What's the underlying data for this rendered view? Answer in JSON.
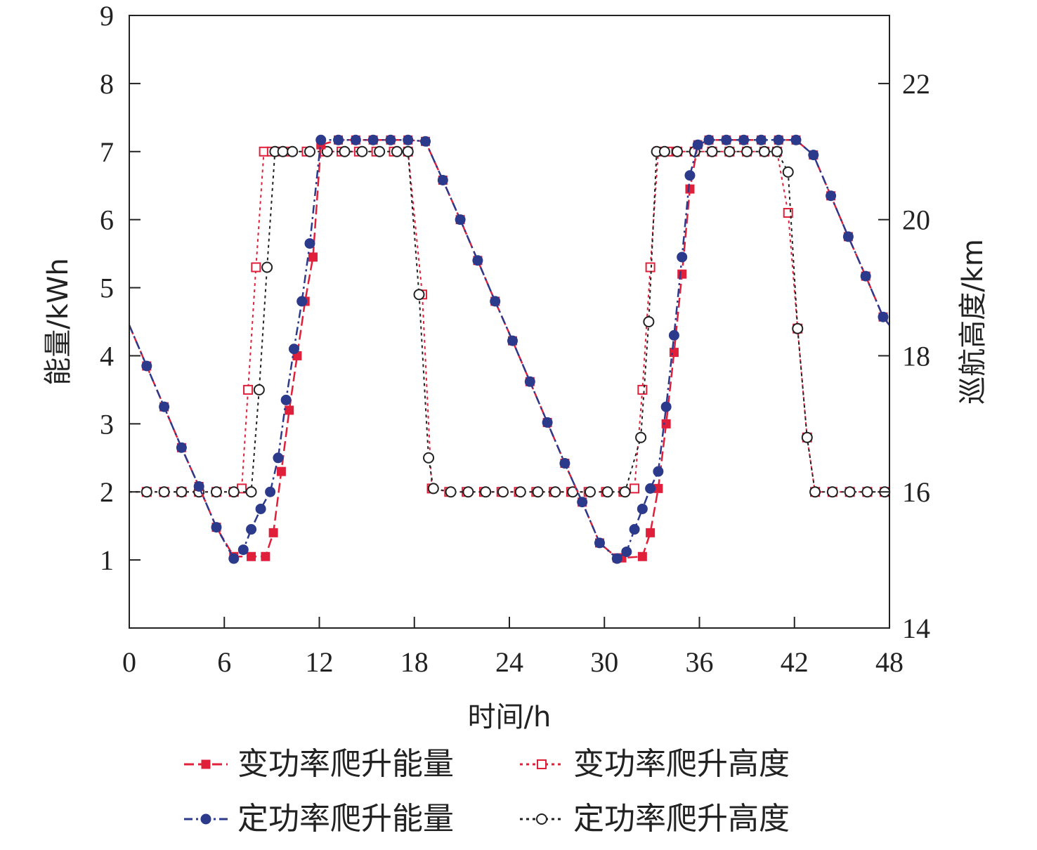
{
  "chart_data": {
    "type": "line",
    "xlabel": "时间/h",
    "ylabel": "能量/kWh",
    "y2label": "巡航高度/km",
    "xlim": [
      0,
      48
    ],
    "ylim": [
      0,
      9
    ],
    "y2lim": [
      14,
      23
    ],
    "xticks": [
      0,
      6,
      12,
      18,
      24,
      30,
      36,
      42,
      48
    ],
    "yticks": [
      1,
      2,
      3,
      4,
      5,
      6,
      7,
      8,
      9
    ],
    "y2ticks": [
      14,
      16,
      18,
      20,
      22
    ],
    "grid": false,
    "legend_position": "bottom",
    "series": [
      {
        "name": "变功率爬升能量",
        "axis": "left",
        "color": "#e0203a",
        "marker": "filled-square",
        "line": "dashed",
        "x": [
          0,
          1.1,
          2.2,
          3.3,
          4.4,
          5.5,
          6.6,
          7.7,
          8.6,
          9.1,
          9.6,
          10.1,
          10.6,
          11.1,
          11.6,
          12.1,
          13.2,
          14.3,
          15.4,
          16.5,
          17.6,
          18.7,
          19.8,
          20.9,
          22.0,
          23.1,
          24.2,
          25.3,
          26.4,
          27.5,
          28.6,
          29.7,
          30.8,
          31.1,
          32.4,
          32.9,
          33.4,
          33.9,
          34.4,
          34.9,
          35.4,
          35.9,
          36.6,
          37.7,
          38.8,
          39.9,
          41.0,
          42.1,
          43.2,
          44.3,
          45.4,
          46.5,
          47.6,
          48
        ],
        "values": [
          4.45,
          3.85,
          3.25,
          2.65,
          2.08,
          1.48,
          1.05,
          1.05,
          1.05,
          1.4,
          2.3,
          3.2,
          4.0,
          4.8,
          5.45,
          7.1,
          7.17,
          7.17,
          7.17,
          7.17,
          7.17,
          7.15,
          6.58,
          6.0,
          5.4,
          4.8,
          4.22,
          3.62,
          3.02,
          2.42,
          1.85,
          1.25,
          1.03,
          1.03,
          1.05,
          1.4,
          2.05,
          3.0,
          4.05,
          5.2,
          6.45,
          7.1,
          7.17,
          7.17,
          7.17,
          7.17,
          7.17,
          7.17,
          6.95,
          6.35,
          5.75,
          5.17,
          4.57,
          4.45
        ]
      },
      {
        "name": "定功率爬升能量",
        "axis": "left",
        "color": "#2c3a8c",
        "marker": "filled-circle",
        "line": "dash-dot",
        "x": [
          0,
          1.1,
          2.2,
          3.3,
          4.4,
          5.5,
          6.6,
          7.2,
          7.7,
          8.3,
          8.9,
          9.4,
          9.9,
          10.4,
          10.9,
          11.4,
          12.1,
          13.2,
          14.3,
          15.4,
          16.5,
          17.6,
          18.7,
          19.8,
          20.9,
          22.0,
          23.1,
          24.2,
          25.3,
          26.4,
          27.5,
          28.6,
          29.7,
          30.8,
          31.4,
          31.9,
          32.4,
          32.9,
          33.4,
          33.9,
          34.4,
          34.9,
          35.4,
          35.9,
          36.6,
          37.7,
          38.8,
          39.9,
          41.0,
          42.1,
          43.2,
          44.3,
          45.4,
          46.5,
          47.6,
          48
        ],
        "values": [
          4.45,
          3.85,
          3.25,
          2.65,
          2.08,
          1.48,
          1.02,
          1.15,
          1.45,
          1.75,
          2.0,
          2.5,
          3.35,
          4.1,
          4.8,
          5.65,
          7.17,
          7.17,
          7.17,
          7.17,
          7.17,
          7.17,
          7.15,
          6.58,
          6.0,
          5.4,
          4.8,
          4.22,
          3.62,
          3.02,
          2.42,
          1.85,
          1.25,
          1.02,
          1.12,
          1.45,
          1.75,
          2.05,
          2.3,
          3.25,
          4.3,
          5.45,
          6.65,
          7.1,
          7.17,
          7.17,
          7.17,
          7.17,
          7.17,
          7.17,
          6.95,
          6.35,
          5.75,
          5.17,
          4.57,
          4.45
        ]
      },
      {
        "name": "变功率爬升高度",
        "axis": "right",
        "color": "#e0203a",
        "marker": "open-square",
        "line": "dotted",
        "x": [
          0,
          1.1,
          2.2,
          3.3,
          4.4,
          5.5,
          6.6,
          7.1,
          7.5,
          8.0,
          8.5,
          9.0,
          9.6,
          10.1,
          11.2,
          12.3,
          13.4,
          14.5,
          15.6,
          16.7,
          17.6,
          18.5,
          19.1,
          20.2,
          21.3,
          22.4,
          23.5,
          24.6,
          25.7,
          26.8,
          27.9,
          29.0,
          30.1,
          31.2,
          31.9,
          32.4,
          32.9,
          33.4,
          34.0,
          34.6,
          35.7,
          36.8,
          37.9,
          39.0,
          40.1,
          40.9,
          41.6,
          42.2,
          42.8,
          43.3,
          44.4,
          45.5,
          46.6,
          47.7,
          48
        ],
        "values": [
          16,
          16,
          16,
          16,
          16,
          16,
          16,
          16.05,
          17.5,
          19.3,
          21.0,
          21.0,
          21.0,
          21.0,
          21.0,
          21.0,
          21.0,
          21.0,
          21.0,
          21.0,
          21.0,
          18.9,
          16.05,
          16,
          16,
          16,
          16,
          16,
          16,
          16,
          16,
          16,
          16,
          16,
          16.05,
          17.5,
          19.3,
          21.0,
          21.0,
          21.0,
          21.0,
          21.0,
          21.0,
          21.0,
          21.0,
          21.0,
          20.1,
          18.4,
          16.8,
          16.0,
          16,
          16,
          16,
          16,
          16
        ]
      },
      {
        "name": "定功率爬升高度",
        "axis": "right",
        "color": "#222222",
        "marker": "open-circle",
        "line": "dotted",
        "x": [
          0,
          1.1,
          2.2,
          3.3,
          4.4,
          5.5,
          6.6,
          7.7,
          8.2,
          8.7,
          9.2,
          9.7,
          10.3,
          11.4,
          12.5,
          13.6,
          14.7,
          15.8,
          16.9,
          17.6,
          18.3,
          18.9,
          19.2,
          20.3,
          21.4,
          22.5,
          23.6,
          24.7,
          25.8,
          26.9,
          28.0,
          29.1,
          30.2,
          31.3,
          32.3,
          32.8,
          33.3,
          33.8,
          34.6,
          35.7,
          36.8,
          37.9,
          39.0,
          40.1,
          40.9,
          41.6,
          42.2,
          42.8,
          43.3,
          44.4,
          45.5,
          46.6,
          47.7,
          48
        ],
        "values": [
          16,
          16,
          16,
          16,
          16,
          16,
          16,
          16,
          17.5,
          19.3,
          21.0,
          21.0,
          21.0,
          21.0,
          21.0,
          21.0,
          21.0,
          21.0,
          21.0,
          21.0,
          18.9,
          16.5,
          16.05,
          16,
          16,
          16,
          16,
          16,
          16,
          16,
          16,
          16,
          16,
          16,
          16.8,
          18.5,
          21.0,
          21.0,
          21.0,
          21.0,
          21.0,
          21.0,
          21.0,
          21.0,
          21.0,
          20.7,
          18.4,
          16.8,
          16.0,
          16,
          16,
          16,
          16,
          16
        ]
      }
    ]
  }
}
